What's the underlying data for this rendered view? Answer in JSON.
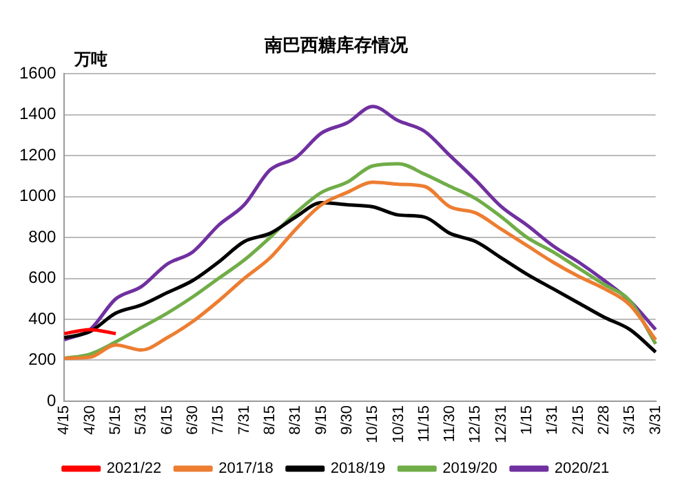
{
  "chart_data": {
    "type": "line",
    "title": "南巴西糖库存情况",
    "ylabel": "万吨",
    "categories": [
      "4/15",
      "4/30",
      "5/15",
      "5/31",
      "6/15",
      "6/30",
      "7/15",
      "7/31",
      "8/15",
      "8/31",
      "9/15",
      "9/30",
      "10/15",
      "10/31",
      "11/15",
      "11/30",
      "12/15",
      "12/31",
      "1/15",
      "1/31",
      "2/15",
      "2/28",
      "3/15",
      "3/31"
    ],
    "series": [
      {
        "name": "2021/22",
        "color": "#ff0000",
        "values": [
          330,
          350,
          330,
          null,
          null,
          null,
          null,
          null,
          null,
          null,
          null,
          null,
          null,
          null,
          null,
          null,
          null,
          null,
          null,
          null,
          null,
          null,
          null,
          null
        ]
      },
      {
        "name": "2017/18",
        "color": "#ed7d31",
        "values": [
          210,
          215,
          275,
          250,
          310,
          390,
          490,
          600,
          700,
          840,
          960,
          1020,
          1070,
          1060,
          1050,
          950,
          920,
          840,
          760,
          680,
          610,
          550,
          470,
          300
        ]
      },
      {
        "name": "2018/19",
        "color": "#000000",
        "values": [
          310,
          340,
          430,
          470,
          530,
          590,
          680,
          780,
          820,
          900,
          970,
          960,
          950,
          910,
          900,
          820,
          780,
          700,
          620,
          550,
          480,
          410,
          350,
          240
        ]
      },
      {
        "name": "2019/20",
        "color": "#70ad47",
        "values": [
          210,
          230,
          290,
          360,
          430,
          510,
          600,
          690,
          800,
          920,
          1020,
          1070,
          1150,
          1160,
          1110,
          1050,
          990,
          900,
          800,
          730,
          650,
          570,
          490,
          280
        ]
      },
      {
        "name": "2020/21",
        "color": "#7030a0",
        "values": [
          300,
          350,
          500,
          560,
          670,
          730,
          860,
          960,
          1130,
          1190,
          1310,
          1360,
          1440,
          1370,
          1320,
          1200,
          1080,
          950,
          860,
          760,
          680,
          590,
          490,
          350
        ]
      }
    ],
    "ylim": [
      0,
      1600
    ],
    "yticks": [
      0,
      200,
      400,
      600,
      800,
      1000,
      1200,
      1400,
      1600
    ],
    "grid": "y",
    "legend": "bottom",
    "marker": "none",
    "line_style": "solid"
  }
}
